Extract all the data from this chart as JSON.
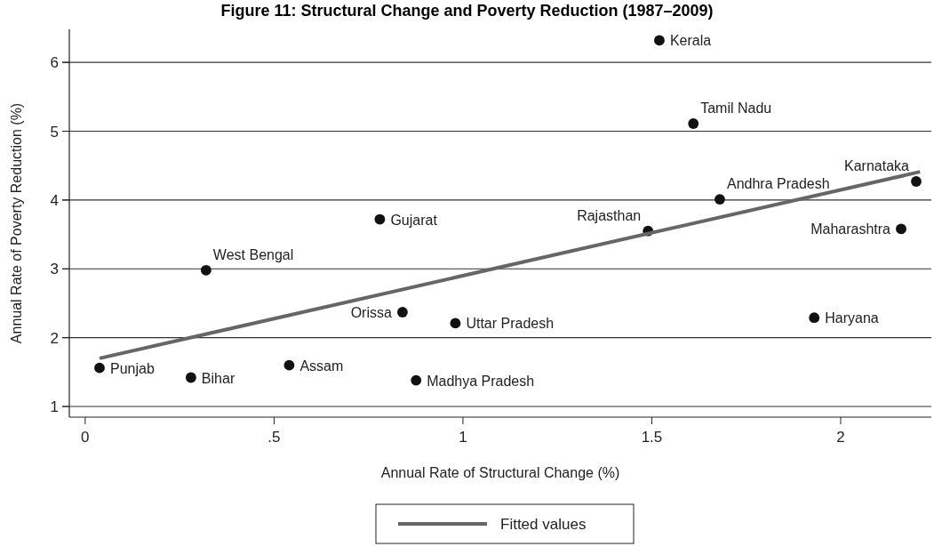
{
  "chart_data": {
    "type": "scatter",
    "title": "Figure 11: Structural Change and Poverty Reduction (1987–2009)",
    "xlabel": "Annual Rate of Structural Change (%)",
    "ylabel": "Annual Rate of Poverty Reduction (%)",
    "xlim": [
      -0.042,
      2.24
    ],
    "ylim": [
      0.845,
      6.48
    ],
    "xticks": [
      0,
      {
        "value": 0.5,
        "label": ".5"
      },
      1,
      1.5,
      2
    ],
    "yticks": [
      1,
      2,
      3,
      4,
      5,
      6
    ],
    "grid": "y",
    "legend": "bottom",
    "series": [
      {
        "marker": "circle",
        "color": "#111111",
        "x": [
          0.038,
          0.28,
          0.32,
          0.54,
          0.78,
          0.84,
          0.876,
          0.98,
          1.52,
          1.61,
          1.49,
          1.68,
          2.2,
          2.16,
          1.93
        ],
        "values": [
          1.56,
          1.42,
          2.98,
          1.6,
          3.72,
          2.37,
          1.38,
          2.21,
          6.32,
          5.11,
          3.55,
          4.01,
          4.27,
          3.58,
          2.29
        ]
      },
      {
        "type": "line",
        "name": "Fitted values",
        "color": "#666666",
        "x": [
          0.038,
          2.21
        ],
        "values": [
          1.7,
          4.41
        ]
      }
    ],
    "annotations": [
      {
        "text": "Punjab",
        "x": 0.038,
        "y": 1.56
      },
      {
        "text": "Bihar",
        "x": 0.28,
        "y": 1.42
      },
      {
        "text": "West Bengal",
        "x": 0.32,
        "y": 2.98
      },
      {
        "text": "Assam",
        "x": 0.54,
        "y": 1.6
      },
      {
        "text": "Gujarat",
        "x": 0.78,
        "y": 3.72
      },
      {
        "text": "Orissa",
        "x": 0.84,
        "y": 2.37
      },
      {
        "text": "Madhya Pradesh",
        "x": 0.876,
        "y": 1.38
      },
      {
        "text": "Uttar Pradesh",
        "x": 0.98,
        "y": 2.21
      },
      {
        "text": "Kerala",
        "x": 1.52,
        "y": 6.32
      },
      {
        "text": "Tamil Nadu",
        "x": 1.61,
        "y": 5.11
      },
      {
        "text": "Rajasthan",
        "x": 1.49,
        "y": 3.55
      },
      {
        "text": "Andhra Pradesh",
        "x": 1.68,
        "y": 4.01
      },
      {
        "text": "Karnataka",
        "x": 2.2,
        "y": 4.27
      },
      {
        "text": "Maharashtra",
        "x": 2.16,
        "y": 3.58
      },
      {
        "text": "Haryana",
        "x": 1.93,
        "y": 2.29
      }
    ]
  }
}
